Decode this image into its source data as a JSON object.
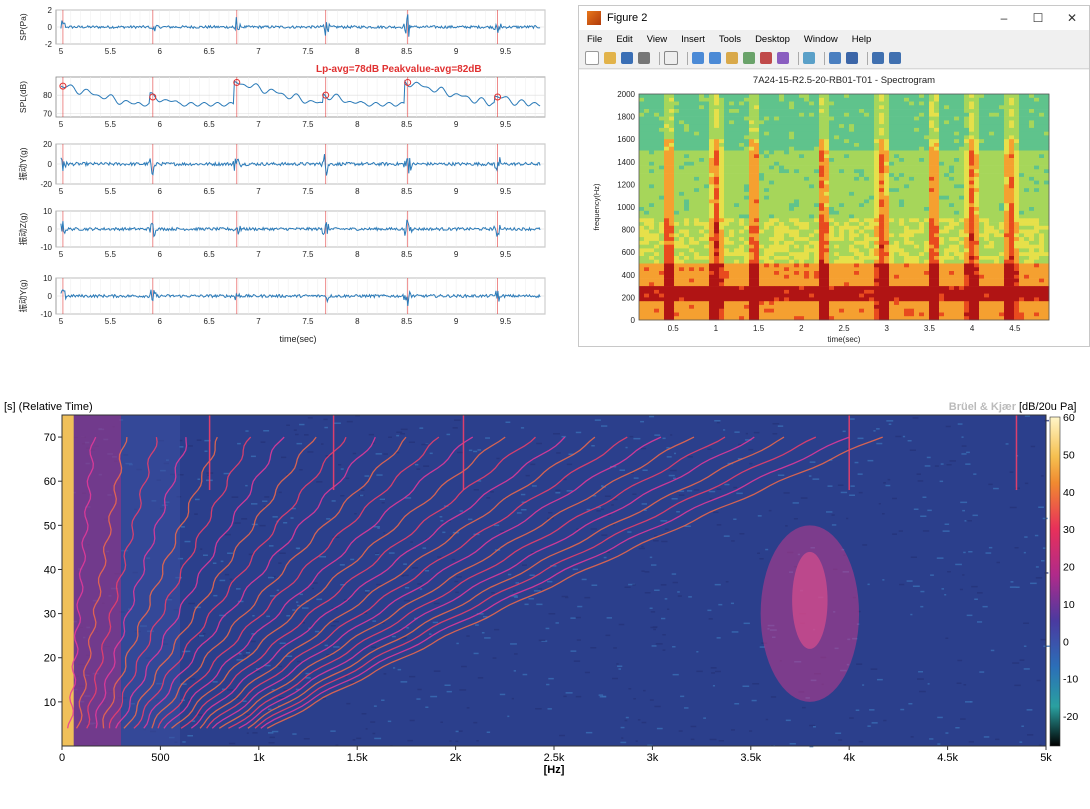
{
  "stack": {
    "panels": [
      {
        "ylabel": "SP(Pa)",
        "ylim": [
          -2,
          2
        ],
        "yticks": [
          "2",
          "0",
          "-2"
        ]
      },
      {
        "ylabel": "SPL(dB)",
        "ylim": [
          68,
          90
        ],
        "yticks": [
          "80",
          "70"
        ]
      },
      {
        "ylabel": "振动Y(g)",
        "ylim": [
          -20,
          20
        ],
        "yticks": [
          "20",
          "0",
          "-20"
        ]
      },
      {
        "ylabel": "振动Z(g)",
        "ylim": [
          -10,
          10
        ],
        "yticks": [
          "10",
          "0",
          "-10"
        ]
      },
      {
        "ylabel": "振动Y(g)",
        "ylim": [
          -10,
          10
        ],
        "yticks": [
          "10",
          "0",
          "-10"
        ]
      }
    ],
    "xticks": [
      "5",
      "5.5",
      "6",
      "6.5",
      "7",
      "7.5",
      "8",
      "8.5",
      "9",
      "9.5"
    ],
    "xlabel": "time(sec)",
    "annotation": "Lp-avg=78dB  Peakvalue-avg=82dB",
    "event_times": [
      5.02,
      5.93,
      6.78,
      7.68,
      8.51,
      9.42
    ],
    "line_color": "#2a7ab8",
    "marker_color": "#e03030"
  },
  "figure": {
    "window_title": "Figure 2",
    "controls": {
      "minimize": "–",
      "maximize": "☐",
      "close": "✕"
    },
    "menus": [
      "File",
      "Edit",
      "View",
      "Insert",
      "Tools",
      "Desktop",
      "Window",
      "Help"
    ],
    "title": "7A24-15-R2.5-20-RB01-T01 - Spectrogram",
    "ylabel": "frequency(Hz)",
    "xlabel": "time(sec)",
    "yticks": [
      "0",
      "200",
      "400",
      "600",
      "800",
      "1000",
      "1200",
      "1400",
      "1600",
      "1800",
      "2000"
    ],
    "xticks": [
      "0.5",
      "1",
      "1.5",
      "2",
      "2.5",
      "3",
      "3.5",
      "4",
      "4.5"
    ]
  },
  "chart_data": [
    {
      "type": "line",
      "title": "",
      "xlabel": "time(sec)",
      "xlim": [
        4.95,
        9.9
      ],
      "series": [
        {
          "ylabel": "SP(Pa)",
          "ylim": [
            -2,
            2
          ],
          "x": [
            5.02,
            5.93,
            6.78,
            7.68,
            8.51,
            9.42
          ],
          "y": [
            0.9,
            0.8,
            1.3,
            1.1,
            1.7,
            1.0
          ]
        },
        {
          "ylabel": "SPL(dB)",
          "ylim": [
            68,
            90
          ],
          "x": [
            5.02,
            5.93,
            6.78,
            7.68,
            8.51,
            9.42
          ],
          "y": [
            85,
            79,
            87,
            80,
            87,
            79
          ]
        },
        {
          "ylabel": "振动Y(g)",
          "ylim": [
            -20,
            20
          ],
          "x": [
            5.02,
            5.93,
            6.78,
            7.68,
            8.51,
            9.42
          ],
          "y": [
            14,
            13,
            12,
            15,
            17,
            11
          ]
        },
        {
          "ylabel": "振动Z(g)",
          "ylim": [
            -10,
            10
          ],
          "x": [
            5.02,
            5.93,
            6.78,
            7.68,
            8.51,
            9.42
          ],
          "y": [
            6,
            5,
            5,
            6,
            7,
            5
          ]
        },
        {
          "ylabel": "振动Y(g)",
          "ylim": [
            -10,
            10
          ],
          "x": [
            5.02,
            5.93,
            6.78,
            7.68,
            8.51,
            9.42
          ],
          "y": [
            4,
            5,
            4,
            5,
            6,
            5
          ]
        }
      ],
      "annotation": "Lp-avg=78dB  Peakvalue-avg=82dB"
    },
    {
      "type": "heatmap",
      "title": "7A24-15-R2.5-20-RB01-T01 - Spectrogram",
      "xlabel": "time(sec)",
      "ylabel": "frequency(Hz)",
      "xlim": [
        0.1,
        4.9
      ],
      "ylim": [
        0,
        2000
      ],
      "strong_band_hz": [
        150,
        280
      ],
      "event_times": [
        0.45,
        1.0,
        1.45,
        2.25,
        2.95,
        3.55,
        4.0,
        4.45
      ]
    },
    {
      "type": "heatmap",
      "title": "",
      "xlabel": "[Hz]",
      "ylabel": "[s] (Relative Time)",
      "xlim": [
        0,
        5000
      ],
      "ylim": [
        0,
        75
      ],
      "xticks": [
        "0",
        "500",
        "1k",
        "1.5k",
        "2k",
        "2.5k",
        "3k",
        "3.5k",
        "4k",
        "4.5k",
        "5k"
      ],
      "yticks": [
        "10",
        "20",
        "30",
        "40",
        "50",
        "60",
        "70"
      ],
      "colorbar": {
        "label": "[dB/20u Pa]",
        "range": [
          -28,
          60
        ],
        "ticks": [
          "60",
          "50",
          "40",
          "30",
          "20",
          "10",
          "0",
          "-10",
          "-20"
        ]
      },
      "brand": "Brüel & Kjær",
      "orders_top_hz": [
        750,
        1380,
        2040,
        4000,
        4850
      ],
      "resonance_hz": 3800
    }
  ]
}
